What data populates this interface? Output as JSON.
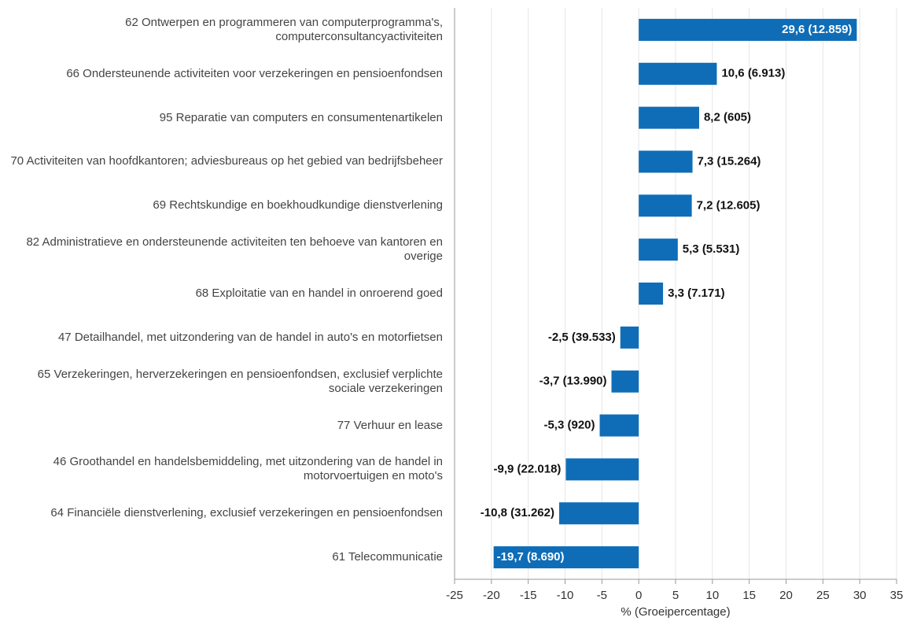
{
  "chart_data": {
    "type": "barh",
    "x_label": "% (Groeipercentage)",
    "categories": [
      "62 Ontwerpen en programmeren van computerprogramma's, computerconsultancyactiviteiten",
      "66 Ondersteunende activiteiten voor verzekeringen en pensioenfondsen",
      "95 Reparatie van computers en consumentenartikelen",
      "70 Activiteiten van hoofdkantoren; adviesbureaus op het gebied van bedrijfsbeheer",
      "69 Rechtskundige en boekhoudkundige dienstverlening",
      "82 Administratieve en ondersteunende activiteiten ten behoeve van kantoren en overige",
      "68 Exploitatie van en handel in onroerend goed",
      "47 Detailhandel, met uitzondering van de handel in auto's en motorfietsen",
      "65 Verzekeringen, herverzekeringen en pensioenfondsen, exclusief verplichte sociale verzekeringen",
      "77 Verhuur en lease",
      "46 Groothandel en handelsbemiddeling, met uitzondering van de handel in motorvoertuigen en moto's",
      "64 Financiële dienstverlening, exclusief verzekeringen en pensioenfondsen",
      "61 Telecommunicatie"
    ],
    "values": [
      29.6,
      10.6,
      8.2,
      7.3,
      7.2,
      5.3,
      3.3,
      -2.5,
      -3.7,
      -5.3,
      -9.9,
      -10.8,
      -19.7
    ],
    "value_labels": [
      "29,6 (12.859)",
      "10,6 (6.913)",
      "8,2 (605)",
      "7,3 (15.264)",
      "7,2 (12.605)",
      "5,3 (5.531)",
      "3,3 (7.171)",
      "-2,5 (39.533)",
      "-3,7 (13.990)",
      "-5,3 (920)",
      "-9,9 (22.018)",
      "-10,8 (31.262)",
      "-19,7 (8.690)"
    ],
    "color": "#0f6db7",
    "xlim": [
      -25,
      35
    ],
    "xticks": [
      -25,
      -20,
      -15,
      -10,
      -5,
      0,
      5,
      10,
      15,
      20,
      25,
      30,
      35
    ],
    "grid": true
  }
}
